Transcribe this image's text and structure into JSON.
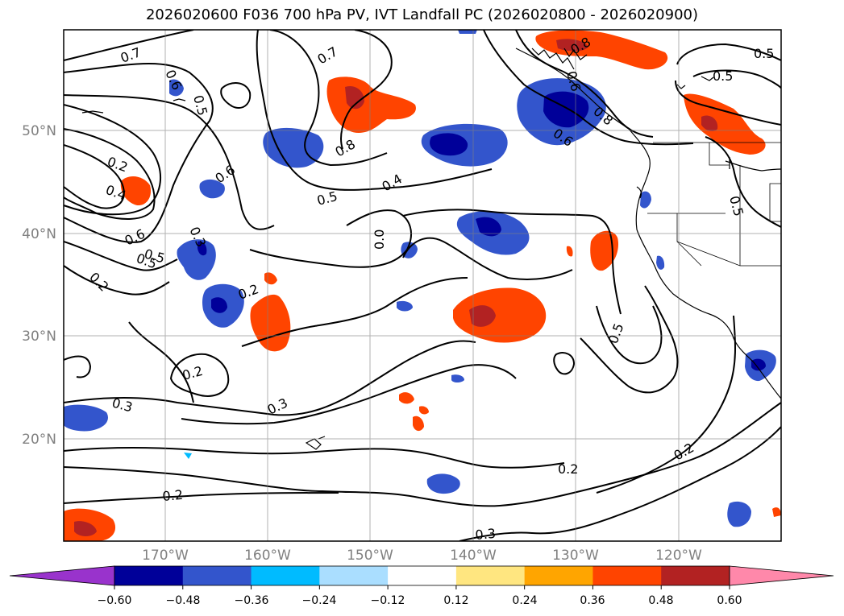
{
  "title": "2026020600 F036 700 hPa PV, IVT Landfall PC (2026020800 - 2026020900)",
  "lat_labels": [
    "50°N",
    "40°N",
    "30°N",
    "20°N"
  ],
  "lon_labels": [
    "170°W",
    "160°W",
    "150°W",
    "140°W",
    "130°W",
    "120°W"
  ],
  "contour_labels": [
    "0.7",
    "0.6",
    "0.5",
    "0.7",
    "0.6",
    "0.8",
    "0.5",
    "0.2",
    "0.4",
    "0.6",
    "0.5",
    "0.2",
    "0.6",
    "0.5",
    "0.4",
    "0.8",
    "0.5",
    "0.6",
    "0.3",
    "0.2",
    "0.0",
    "0.2",
    "0.3",
    "0.3",
    "0.5",
    "0.2",
    "0.2",
    "0.3",
    "0.2",
    "0.5",
    "0.8",
    "0.5"
  ],
  "colorbar": {
    "ticks": [
      "−0.60",
      "−0.48",
      "−0.36",
      "−0.24",
      "−0.12",
      "0.12",
      "0.24",
      "0.36",
      "0.48",
      "0.60"
    ],
    "colors": [
      "#9933cc",
      "#000099",
      "#3355cc",
      "#00bbff",
      "#aadeff",
      "#ffffff",
      "#ffe680",
      "#ffa500",
      "#ff4400",
      "#b22222",
      "#ff88aa"
    ]
  }
}
